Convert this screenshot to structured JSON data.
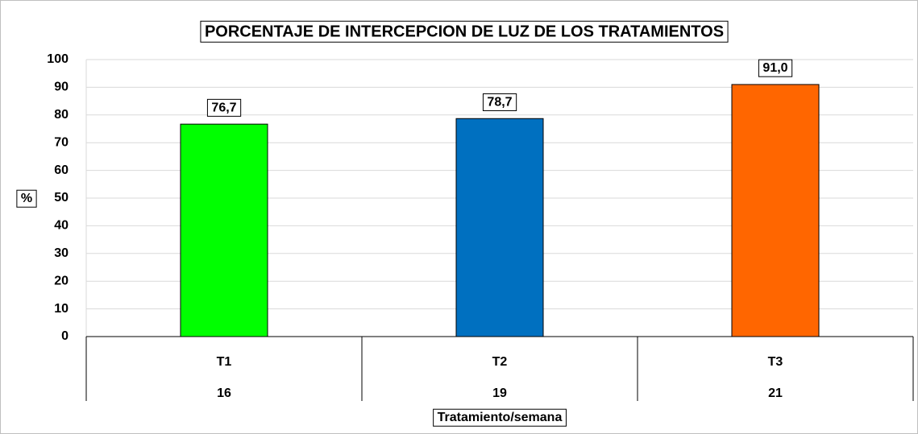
{
  "chart_data": {
    "type": "bar",
    "title": "PORCENTAJE DE INTERCEPCION DE LUZ DE LOS TRATAMIENTOS",
    "y_label": "%",
    "x_label": "Tratamiento/semana",
    "categories": [
      "T1",
      "T2",
      "T3"
    ],
    "subcategories": [
      "16",
      "19",
      "21"
    ],
    "values": [
      76.7,
      78.7,
      91.0
    ],
    "value_labels": [
      "76,7",
      "78,7",
      "91,0"
    ],
    "colors": [
      "#00ff00",
      "#0070c0",
      "#ff6600"
    ],
    "ylim": [
      0,
      100
    ],
    "yticks": [
      0,
      10,
      20,
      30,
      40,
      50,
      60,
      70,
      80,
      90,
      100
    ],
    "grid": true
  }
}
